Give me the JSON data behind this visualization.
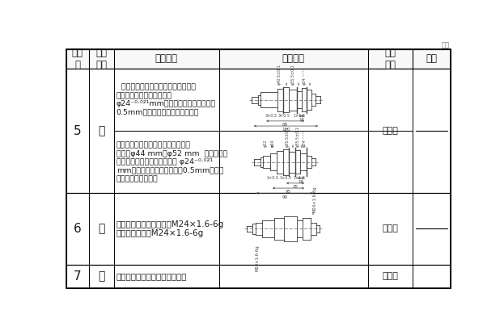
{
  "background_color": "#ffffff",
  "col_headers": [
    "工序\n号",
    "工序\n名称",
    "工序内容",
    "工序简图",
    "定位\n基准",
    "设备"
  ],
  "row5_content_a": "双顶尖装夹半精车三个台阶，长度达\n到尺寸要求，联纹大径车到\nφ24＋⁻²¹mm，其余两个台阶直径上留\n0.5mm余量，切槽三个，倒角三个",
  "row5_content_b": "调头，双顶尖装夹半精车余下的五个\n台阶：φ44 mm及φ52 mm  台阶车到图\n样规定的尺寸。联纹大径车到 φ24＋⁻²¹\nmm，其余两个台阶直径上留 0.5mm余量，\n切槽三个，倒角四个",
  "row6_content": "双顶尖装夹，车一端联纹M24×1.6-6g\n调头，车另一端M24×1.6-6g",
  "row7_content": "划键槽及一个止动垫圈槽加工线",
  "text_color": "#1a1a1a",
  "shaft_color": "#444444",
  "dim_color": "#555555"
}
